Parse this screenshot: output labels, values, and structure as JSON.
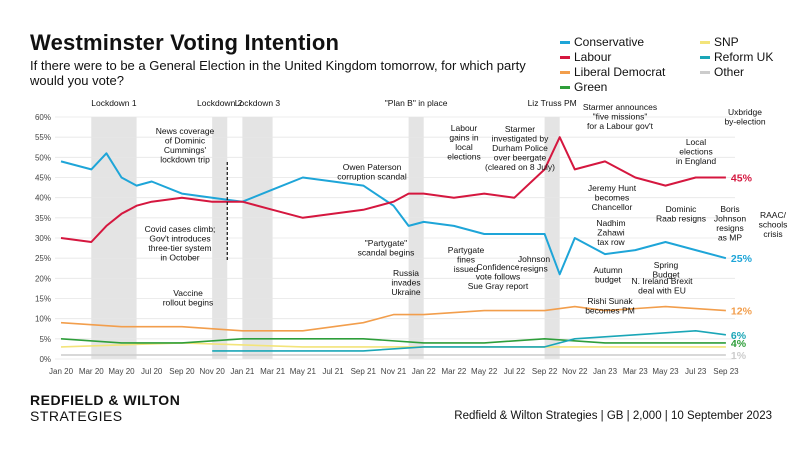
{
  "header": {
    "title": "Westminster Voting Intention",
    "subtitle": "If there were to be a General Election in the United Kingdom tomorrow, for which party would you vote?"
  },
  "brand": {
    "line1": "REDFIELD & WILTON",
    "line2": "STRATEGIES"
  },
  "source": "Redfield & Wilton Strategies | GB | 2,000 | 10 September 2023",
  "colors": {
    "Conservative": "#1ea5d8",
    "Labour": "#d5173f",
    "Liberal Democrat": "#f29e4c",
    "Green": "#2e9e3a",
    "SNP": "#f3e47a",
    "Reform UK": "#1aa6b7",
    "Other": "#cccccc"
  },
  "chart_data": {
    "type": "line",
    "title": "Westminster Voting Intention",
    "ylim": [
      0,
      60
    ],
    "y_ticks": [
      "0%",
      "5%",
      "10%",
      "15%",
      "20%",
      "25%",
      "30%",
      "35%",
      "40%",
      "45%",
      "50%",
      "55%",
      "60%"
    ],
    "x_ticks": [
      "Jan 20",
      "Mar 20",
      "May 20",
      "Jul 20",
      "Sep 20",
      "Nov 20",
      "Jan 21",
      "Mar 21",
      "May 21",
      "Jul 21",
      "Sep 21",
      "Nov 21",
      "Jan 22",
      "Mar 22",
      "May 22",
      "Jul 22",
      "Sep 22",
      "Nov 22",
      "Jan 23",
      "Mar 23",
      "May 23",
      "Jul 23",
      "Sep 23"
    ],
    "x_range": [
      "2020-01",
      "2023-09"
    ],
    "grid": true,
    "legend": "top-right",
    "series": [
      {
        "name": "Conservative",
        "end_label": "25%",
        "x": [
          "2020-01",
          "2020-03",
          "2020-04",
          "2020-05",
          "2020-06",
          "2020-07",
          "2020-09",
          "2020-11",
          "2021-01",
          "2021-03",
          "2021-05",
          "2021-07",
          "2021-09",
          "2021-11",
          "2021-12",
          "2022-01",
          "2022-03",
          "2022-05",
          "2022-07",
          "2022-09",
          "2022-10",
          "2022-11",
          "2023-01",
          "2023-03",
          "2023-05",
          "2023-07",
          "2023-09"
        ],
        "values": [
          49,
          47,
          51,
          45,
          43,
          44,
          41,
          40,
          39,
          42,
          45,
          44,
          43,
          38,
          33,
          34,
          33,
          31,
          31,
          31,
          21,
          30,
          26,
          27,
          29,
          27,
          25
        ]
      },
      {
        "name": "Labour",
        "end_label": "45%",
        "x": [
          "2020-01",
          "2020-03",
          "2020-04",
          "2020-05",
          "2020-06",
          "2020-07",
          "2020-09",
          "2020-11",
          "2021-01",
          "2021-03",
          "2021-05",
          "2021-07",
          "2021-09",
          "2021-11",
          "2021-12",
          "2022-01",
          "2022-03",
          "2022-05",
          "2022-07",
          "2022-09",
          "2022-10",
          "2022-11",
          "2023-01",
          "2023-03",
          "2023-05",
          "2023-07",
          "2023-09"
        ],
        "values": [
          30,
          29,
          33,
          36,
          38,
          39,
          40,
          39,
          39,
          37,
          35,
          36,
          37,
          39,
          41,
          41,
          40,
          41,
          40,
          47,
          55,
          47,
          49,
          45,
          43,
          45,
          45
        ]
      },
      {
        "name": "Liberal Democrat",
        "end_label": "12%",
        "x": [
          "2020-01",
          "2020-05",
          "2020-09",
          "2021-01",
          "2021-05",
          "2021-09",
          "2021-11",
          "2022-01",
          "2022-05",
          "2022-09",
          "2022-11",
          "2023-01",
          "2023-05",
          "2023-09"
        ],
        "values": [
          9,
          8,
          8,
          7,
          7,
          9,
          11,
          11,
          12,
          12,
          13,
          12,
          13,
          12
        ]
      },
      {
        "name": "Green",
        "end_label": "4%",
        "x": [
          "2020-01",
          "2020-05",
          "2020-09",
          "2021-01",
          "2021-05",
          "2021-09",
          "2022-01",
          "2022-05",
          "2022-09",
          "2023-01",
          "2023-05",
          "2023-09"
        ],
        "values": [
          5,
          4,
          4,
          5,
          5,
          5,
          4,
          4,
          5,
          4,
          4,
          4
        ]
      },
      {
        "name": "SNP",
        "end_label": "",
        "x": [
          "2020-01",
          "2020-09",
          "2021-05",
          "2022-01",
          "2022-09",
          "2023-05",
          "2023-09"
        ],
        "values": [
          3,
          4,
          3,
          3,
          3,
          3,
          3
        ]
      },
      {
        "name": "Reform UK",
        "end_label": "6%",
        "x": [
          "2020-11",
          "2021-03",
          "2021-09",
          "2022-01",
          "2022-05",
          "2022-09",
          "2022-11",
          "2023-03",
          "2023-07",
          "2023-09"
        ],
        "values": [
          2,
          2,
          2,
          3,
          3,
          3,
          5,
          6,
          7,
          6
        ]
      },
      {
        "name": "Other",
        "end_label": "1%",
        "x": [
          "2020-01",
          "2021-01",
          "2022-01",
          "2023-01",
          "2023-09"
        ],
        "values": [
          1,
          1,
          1,
          1,
          1
        ]
      }
    ],
    "shaded_periods": [
      {
        "label": "Lockdown 1",
        "start": "2020-03",
        "end": "2020-06"
      },
      {
        "label": "Lockdown 2",
        "start": "2020-11",
        "end": "2020-12"
      },
      {
        "label": "Lockdown 3",
        "start": "2021-01",
        "end": "2021-03"
      },
      {
        "label": "\"Plan B\" in place",
        "start": "2021-12",
        "end": "2022-01"
      },
      {
        "label": "Liz Truss PM",
        "start": "2022-09",
        "end": "2022-10"
      }
    ],
    "annotations": [
      "News coverage of Dominic Cummings' lockdown trip",
      "Covid cases climb; Gov't introduces three-tier system in October",
      "Vaccine rollout begins",
      "Owen Paterson corruption scandal",
      "\"Partygate\" scandal begins",
      "Russia invades Ukraine",
      "Labour gains in local elections",
      "Partygate fines issued",
      "Starmer investigated by Durham Police over beergate (cleared on 8 July)",
      "Confidence vote follows Sue Gray report",
      "Johnson resigns",
      "Jeremy Hunt becomes Chancellor",
      "Nadhim Zahawi tax row",
      "Autumn budget",
      "Rishi Sunak becomes PM",
      "Starmer announces \"five missions\" for a Labour gov't",
      "Dominic Raab resigns",
      "N. Ireland Brexit deal with EU",
      "Spring Budget",
      "Local elections in England",
      "Uxbridge by-election",
      "Boris Johnson resigns as MP",
      "RAAC/ schools crisis"
    ]
  }
}
